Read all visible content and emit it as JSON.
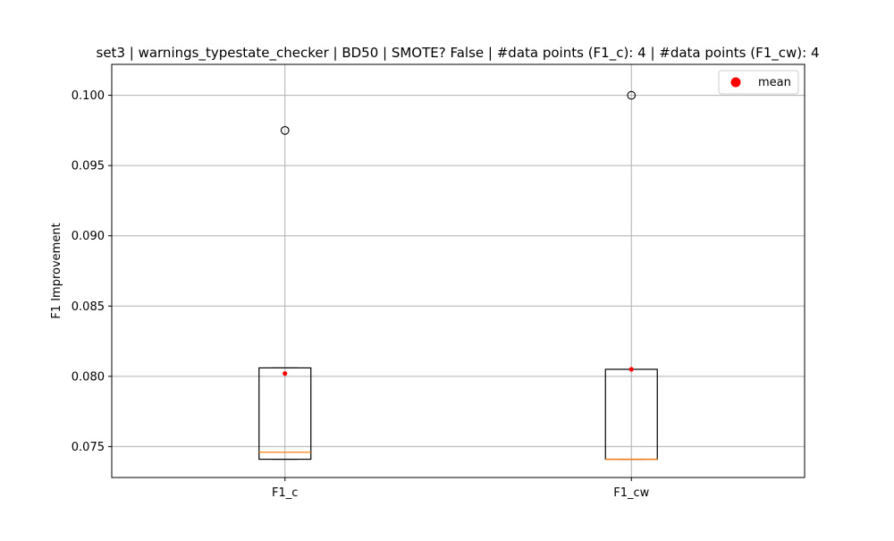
{
  "chart_data": {
    "type": "box",
    "title": "set3 | warnings_typestate_checker | BD50 | SMOTE? False | #data points (F1_c): 4 | #data points (F1_cw): 4",
    "xlabel": "",
    "ylabel": "F1 Improvement",
    "ylim": [
      0.0728,
      0.1022
    ],
    "yticks": [
      0.075,
      0.08,
      0.085,
      0.09,
      0.095,
      0.1
    ],
    "ytick_labels": [
      "0.075",
      "0.080",
      "0.085",
      "0.090",
      "0.095",
      "0.100"
    ],
    "grid": true,
    "legend": {
      "position": "top-right",
      "entries": [
        {
          "label": "mean",
          "color": "#ff0000",
          "marker": "circle"
        }
      ]
    },
    "colors": {
      "box": "#000000",
      "median": "#ff7f0e",
      "mean": "#ff0000",
      "grid": "#b0b0b0"
    },
    "categories": [
      "F1_c",
      "F1_cw"
    ],
    "boxes": [
      {
        "label": "F1_c",
        "whisker_low": 0.0741,
        "q1": 0.0741,
        "median": 0.0746,
        "q3": 0.0806,
        "whisker_high": 0.0806,
        "mean": 0.0802,
        "outliers": [
          0.0975
        ]
      },
      {
        "label": "F1_cw",
        "whisker_low": 0.0741,
        "q1": 0.0741,
        "median": 0.0741,
        "q3": 0.0805,
        "whisker_high": 0.0805,
        "mean": 0.0805,
        "outliers": [
          0.1
        ]
      }
    ]
  }
}
